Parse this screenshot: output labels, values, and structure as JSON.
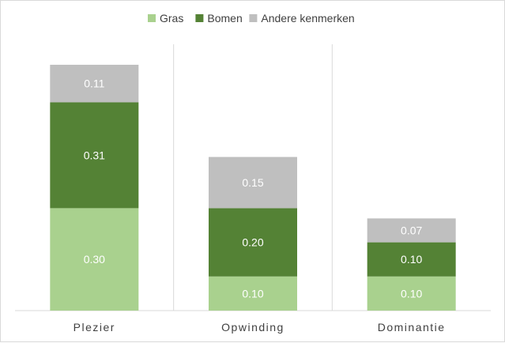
{
  "chart_data": {
    "type": "stacked-bar",
    "categories": [
      "Plezier",
      "Opwinding",
      "Dominantie"
    ],
    "series": [
      {
        "name": "Gras",
        "color": "#a9d18e",
        "values": [
          0.3,
          0.1,
          0.1
        ],
        "labels": [
          "0.30",
          "0.10",
          "0.10"
        ]
      },
      {
        "name": "Bomen",
        "color": "#548235",
        "values": [
          0.31,
          0.2,
          0.1
        ],
        "labels": [
          "0.31",
          "0.20",
          "0.10"
        ]
      },
      {
        "name": "Andere kenmerken",
        "color": "#bfbfbf",
        "values": [
          0.11,
          0.15,
          0.07
        ],
        "labels": [
          "0.11",
          "0.15",
          "0.07"
        ]
      }
    ],
    "ylim": [
      0,
      0.8
    ],
    "grid": "vertical separators",
    "legend": "top-center"
  }
}
